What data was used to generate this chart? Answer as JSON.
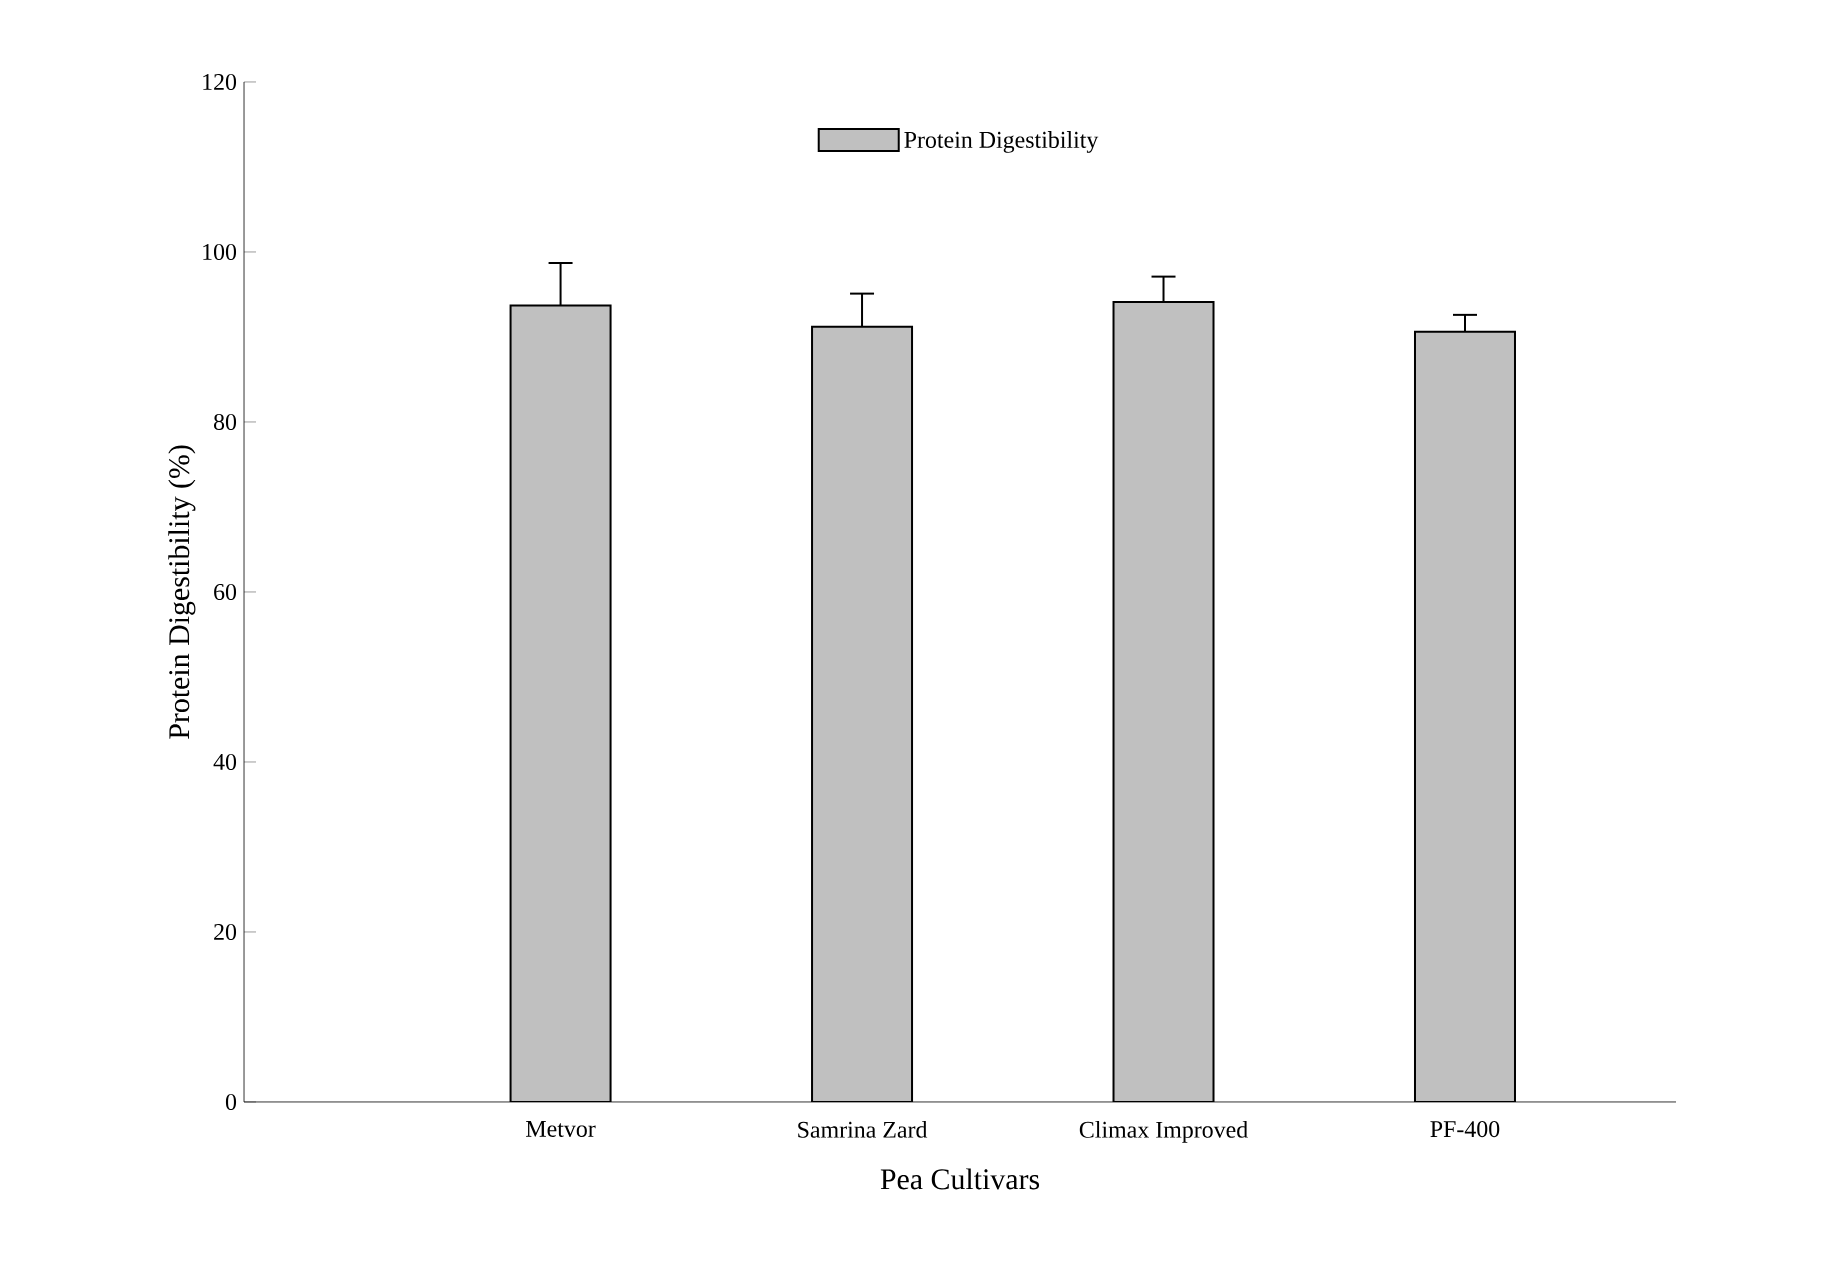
{
  "chart_data": {
    "type": "bar",
    "xlabel": "Pea Cultivars",
    "ylabel": "Protein Digestibility (%)",
    "categories": [
      "Metvor",
      "Samrina Zard",
      "Climax Improved",
      "PF-400"
    ],
    "series": [
      {
        "name": "Protein Digestibility",
        "color": "#c0c0c0",
        "values": [
          93.7,
          91.2,
          94.1,
          90.6
        ],
        "errors": [
          5.0,
          3.9,
          3.0,
          2.0
        ]
      }
    ],
    "ylim": [
      0,
      120
    ],
    "yticks": [
      0,
      20,
      40,
      60,
      80,
      100,
      120
    ],
    "legend": "top",
    "grid": false
  }
}
